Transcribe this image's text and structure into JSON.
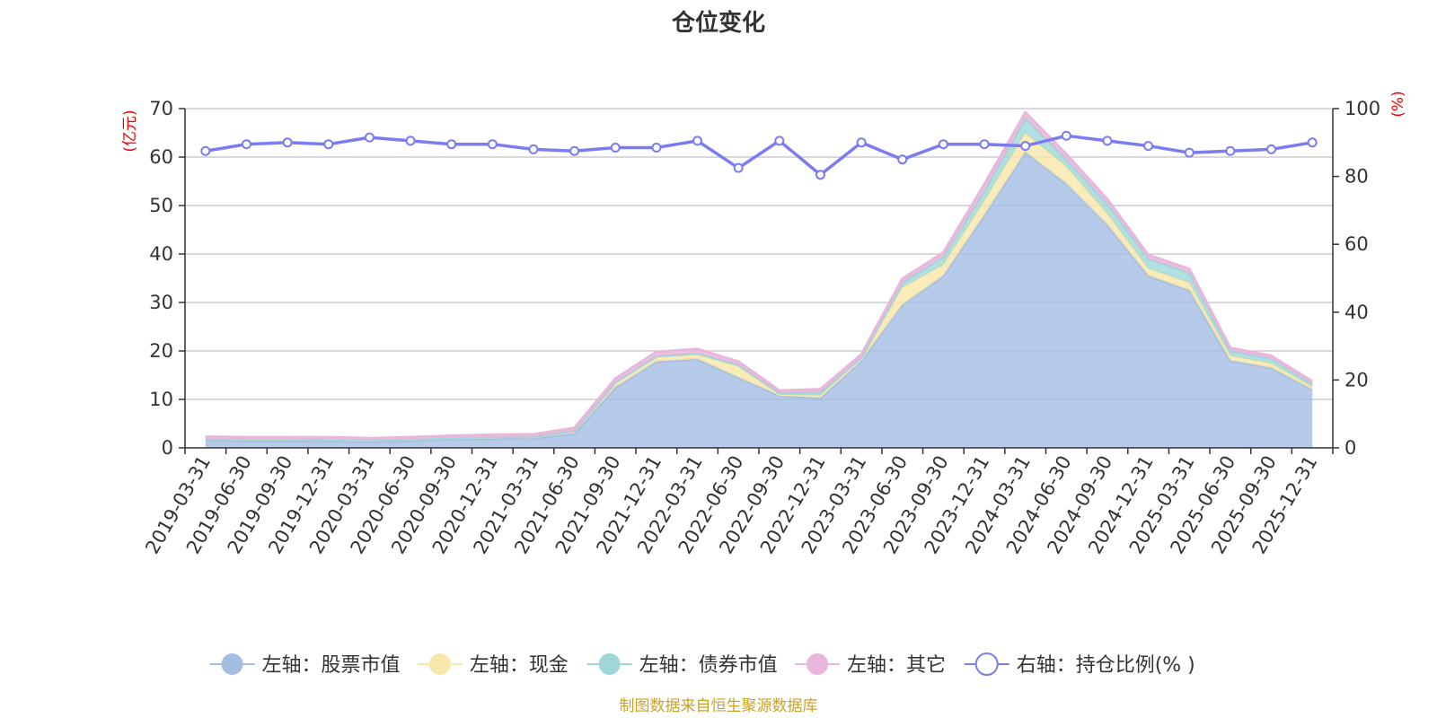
{
  "chart_data": {
    "type": "area+line",
    "title": "仓位变化",
    "left_unit": "(亿元)",
    "right_unit": "(%)",
    "ylim_left": [
      0,
      70
    ],
    "yticks_left": [
      "0",
      "10",
      "20",
      "30",
      "40",
      "50",
      "60",
      "70"
    ],
    "ylim_right": [
      0,
      100
    ],
    "yticks_right": [
      "0",
      "20",
      "40",
      "60",
      "80",
      "100"
    ],
    "categories": [
      "2019-03-31",
      "2019-06-30",
      "2019-09-30",
      "2019-12-31",
      "2020-03-31",
      "2020-06-30",
      "2020-09-30",
      "2020-12-31",
      "2021-03-31",
      "2021-06-30",
      "2021-09-30",
      "2021-12-31",
      "2022-03-31",
      "2022-06-30",
      "2022-09-30",
      "2022-12-31",
      "2023-03-31",
      "2023-06-30",
      "2023-09-30",
      "2023-12-31",
      "2024-03-31",
      "2024-06-30",
      "2024-09-30",
      "2024-12-31",
      "2025-03-31",
      "2025-06-30",
      "2025-09-30",
      "2025-12-31"
    ],
    "series": [
      {
        "name": "左轴：股票市值",
        "axis": "left",
        "type": "stacked-area",
        "color": "#a4bde3",
        "values": [
          1.6,
          1.5,
          1.5,
          1.4,
          1.3,
          1.5,
          1.8,
          1.9,
          2.0,
          3.0,
          12.5,
          17.8,
          18.3,
          14.5,
          10.8,
          10.3,
          18.0,
          29.5,
          35.5,
          48.0,
          61.0,
          54.5,
          46.0,
          35.5,
          32.5,
          18.0,
          16.5,
          12.0
        ]
      },
      {
        "name": "左轴：现金",
        "axis": "left",
        "type": "stacked-area",
        "color": "#f7e7a9",
        "values": [
          0.3,
          0.3,
          0.3,
          0.3,
          0.3,
          0.3,
          0.3,
          0.3,
          0.3,
          0.5,
          1.0,
          1.1,
          0.9,
          2.3,
          0.2,
          0.5,
          0.4,
          3.6,
          2.3,
          3.0,
          4.0,
          3.5,
          2.3,
          1.5,
          1.6,
          1.0,
          0.9,
          0.6
        ]
      },
      {
        "name": "左轴：债券市值",
        "axis": "left",
        "type": "stacked-area",
        "color": "#9fd7d8",
        "values": [
          0,
          0,
          0,
          0,
          0,
          0,
          0,
          0,
          0,
          0,
          0,
          0,
          0.3,
          0.3,
          0.3,
          0.7,
          0.2,
          1.0,
          1.6,
          2.0,
          3.0,
          1.5,
          2.0,
          2.0,
          2.0,
          1.0,
          1.0,
          0.6
        ]
      },
      {
        "name": "左轴：其它",
        "axis": "left",
        "type": "stacked-area",
        "color": "#e9b6dc",
        "values": [
          0.4,
          0.4,
          0.4,
          0.5,
          0.4,
          0.4,
          0.4,
          0.5,
          0.5,
          0.6,
          0.8,
          0.9,
          0.9,
          0.7,
          0.5,
          0.6,
          0.7,
          0.8,
          0.9,
          1.4,
          1.2,
          1.1,
          1.0,
          0.8,
          0.8,
          0.6,
          0.6,
          0.5
        ]
      },
      {
        "name": "右轴：持仓比例(% )",
        "axis": "right",
        "type": "line",
        "color": "#7b7cf0",
        "values": [
          87.5,
          89.5,
          90.0,
          89.5,
          91.5,
          90.5,
          89.5,
          89.5,
          88.0,
          87.5,
          88.5,
          88.5,
          90.5,
          82.5,
          90.5,
          80.5,
          90.0,
          85.0,
          89.5,
          89.5,
          89.0,
          92.0,
          90.5,
          89.0,
          87.0,
          87.5,
          88.0,
          90.0
        ]
      }
    ]
  },
  "legend": {
    "items": [
      {
        "label": "左轴：股票市值",
        "color": "#a4bde3",
        "style": "area"
      },
      {
        "label": "左轴：现金",
        "color": "#f7e7a9",
        "style": "area"
      },
      {
        "label": "左轴：债券市值",
        "color": "#9fd7d8",
        "style": "area"
      },
      {
        "label": "左轴：其它",
        "color": "#e9b6dc",
        "style": "area"
      },
      {
        "label": "右轴：持仓比例(% )",
        "color": "#7b7cf0",
        "style": "line"
      }
    ]
  },
  "source_text": "制图数据来自恒生聚源数据库"
}
